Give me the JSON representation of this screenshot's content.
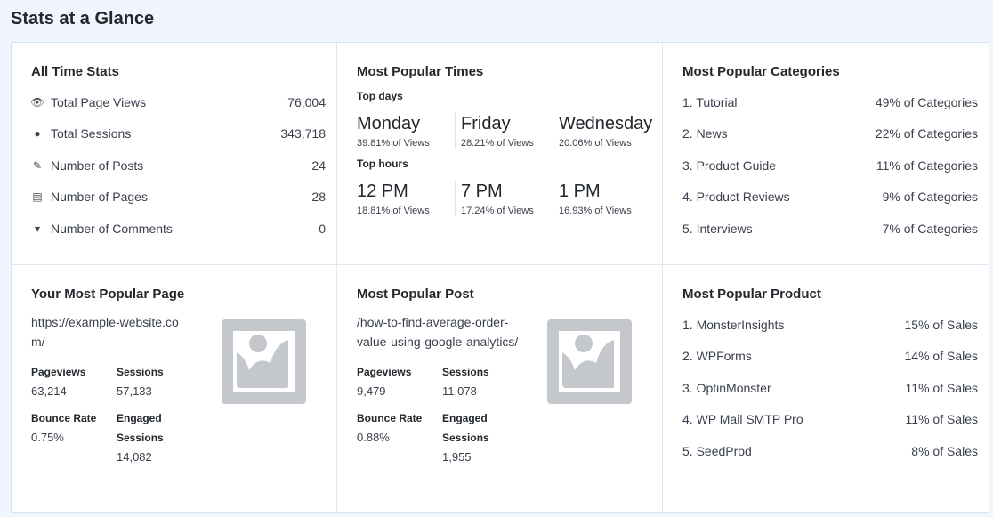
{
  "title": "Stats at a Glance",
  "all_time": {
    "title": "All Time Stats",
    "items": [
      {
        "icon": "eye-icon",
        "label": "Total Page Views",
        "value": "76,004"
      },
      {
        "icon": "users-icon",
        "label": "Total Sessions",
        "value": "343,718"
      },
      {
        "icon": "edit-icon",
        "label": "Number of Posts",
        "value": "24"
      },
      {
        "icon": "page-icon",
        "label": "Number of Pages",
        "value": "28"
      },
      {
        "icon": "comment-icon",
        "label": "Number of Comments",
        "value": "0"
      }
    ]
  },
  "times": {
    "title": "Most Popular Times",
    "days_label": "Top days",
    "days": [
      {
        "name": "Monday",
        "pct": "39.81% of Views"
      },
      {
        "name": "Friday",
        "pct": "28.21% of Views"
      },
      {
        "name": "Wednesday",
        "pct": "20.06% of Views"
      }
    ],
    "hours_label": "Top hours",
    "hours": [
      {
        "name": "12 PM",
        "pct": "18.81% of Views"
      },
      {
        "name": "7 PM",
        "pct": "17.24% of Views"
      },
      {
        "name": "1 PM",
        "pct": "16.93% of Views"
      }
    ]
  },
  "categories": {
    "title": "Most Popular Categories",
    "items": [
      {
        "name": "1. Tutorial",
        "value": "49% of Categories"
      },
      {
        "name": "2. News",
        "value": "22% of Categories"
      },
      {
        "name": "3. Product Guide",
        "value": "11% of Categories"
      },
      {
        "name": "4. Product Reviews",
        "value": "9% of Categories"
      },
      {
        "name": "5. Interviews",
        "value": "7% of Categories"
      }
    ]
  },
  "page": {
    "title": "Your Most Popular Page",
    "url": "https://example-website.com/",
    "pageviews_label": "Pageviews",
    "pageviews": "63,214",
    "sessions_label": "Sessions",
    "sessions": "57,133",
    "bounce_label": "Bounce Rate",
    "bounce": "0.75%",
    "engaged_label": "Engaged Sessions",
    "engaged": "14,082"
  },
  "post": {
    "title": "Most Popular Post",
    "url": "/how-to-find-average-order-value-using-google-analytics/",
    "pageviews_label": "Pageviews",
    "pageviews": "9,479",
    "sessions_label": "Sessions",
    "sessions": "11,078",
    "bounce_label": "Bounce Rate",
    "bounce": "0.88%",
    "engaged_label": "Engaged Sessions",
    "engaged": "1,955"
  },
  "product": {
    "title": "Most Popular Product",
    "items": [
      {
        "name": "1. MonsterInsights",
        "value": "15% of Sales"
      },
      {
        "name": "2. WPForms",
        "value": "14% of Sales"
      },
      {
        "name": "3. OptinMonster",
        "value": "11% of Sales"
      },
      {
        "name": "4. WP Mail SMTP Pro",
        "value": "11% of Sales"
      },
      {
        "name": "5. SeedProd",
        "value": "8% of Sales"
      }
    ]
  }
}
